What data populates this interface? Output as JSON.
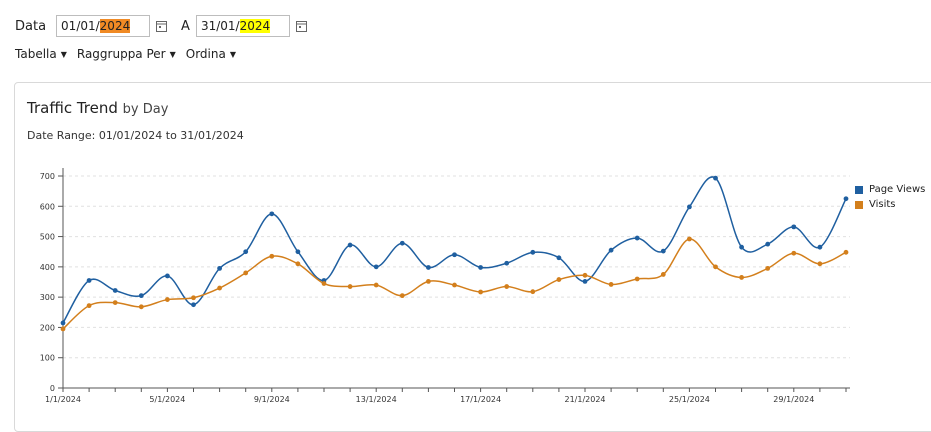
{
  "filters": {
    "date_label": "Data",
    "from_date_prefix": "01/01/",
    "from_date_year": "2024",
    "to_label": "A",
    "to_date_prefix": "31/01/",
    "to_date_year": "2024"
  },
  "menu": {
    "table_label": "Tabella",
    "group_by_label": "Raggruppa Per",
    "sort_label": "Ordina"
  },
  "card": {
    "title": "Traffic Trend",
    "title_suffix": "by Day",
    "date_range": "Date Range: 01/01/2024 to 31/01/2024"
  },
  "colors": {
    "page_views": "#1f5fa0",
    "visits": "#d37f1c",
    "highlight_orange": "#f08a24",
    "highlight_yellow": "#ffff00"
  },
  "chart_data": {
    "type": "line",
    "x": [
      "1/1/2024",
      "2/1/2024",
      "3/1/2024",
      "4/1/2024",
      "5/1/2024",
      "6/1/2024",
      "7/1/2024",
      "8/1/2024",
      "9/1/2024",
      "10/1/2024",
      "11/1/2024",
      "12/1/2024",
      "13/1/2024",
      "14/1/2024",
      "15/1/2024",
      "16/1/2024",
      "17/1/2024",
      "18/1/2024",
      "19/1/2024",
      "20/1/2024",
      "21/1/2024",
      "22/1/2024",
      "23/1/2024",
      "24/1/2024",
      "25/1/2024",
      "26/1/2024",
      "27/1/2024",
      "28/1/2024",
      "29/1/2024",
      "30/1/2024",
      "31/1/2024"
    ],
    "x_tick_labels": [
      "1/1/2024",
      "5/1/2024",
      "9/1/2024",
      "13/1/2024",
      "17/1/2024",
      "21/1/2024",
      "25/1/2024",
      "29/1/2024"
    ],
    "series": [
      {
        "name": "Page Views",
        "values": [
          215,
          355,
          322,
          305,
          370,
          275,
          395,
          450,
          575,
          450,
          355,
          472,
          400,
          478,
          398,
          440,
          398,
          412,
          448,
          430,
          352,
          455,
          495,
          452,
          598,
          693,
          465,
          475,
          532,
          465,
          625
        ]
      },
      {
        "name": "Visits",
        "values": [
          195,
          272,
          282,
          268,
          292,
          298,
          330,
          380,
          435,
          410,
          345,
          335,
          340,
          305,
          352,
          340,
          317,
          335,
          318,
          358,
          372,
          342,
          360,
          375,
          492,
          400,
          365,
          395,
          445,
          410,
          448
        ]
      }
    ],
    "ylim": [
      0,
      700
    ],
    "y_ticks": [
      0,
      100,
      200,
      300,
      400,
      500,
      600,
      700
    ],
    "grid": true,
    "legend": "right"
  }
}
